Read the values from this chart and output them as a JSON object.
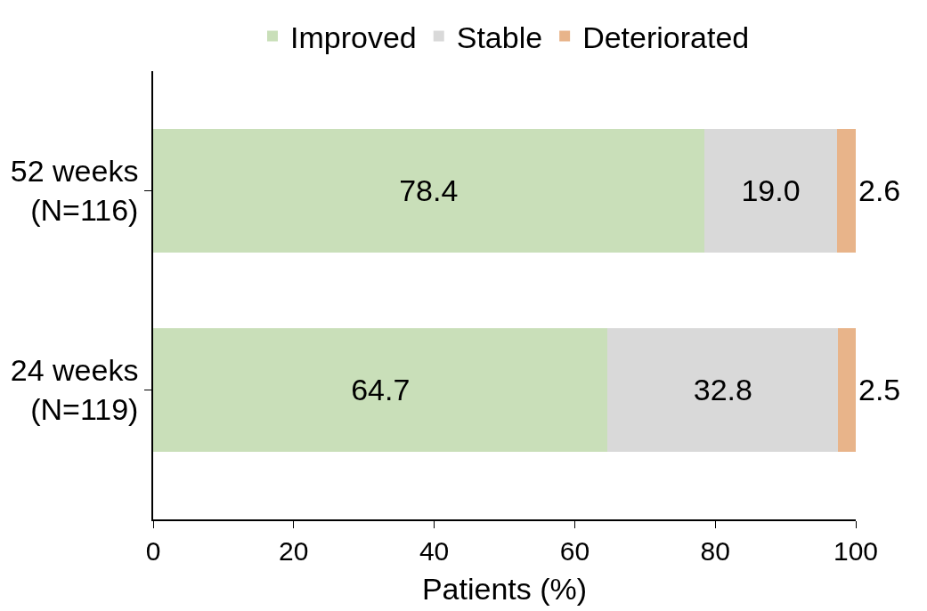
{
  "chart_data": {
    "type": "bar",
    "orientation": "horizontal",
    "stacked": true,
    "xlabel": "Patients (%)",
    "categories": [
      "52 weeks\n(N=116)",
      "24 weeks\n(N=119)"
    ],
    "series": [
      {
        "name": "Improved",
        "color": "#c9dfb9",
        "values": [
          78.4,
          64.7
        ]
      },
      {
        "name": "Stable",
        "color": "#d9d9d9",
        "values": [
          19.0,
          32.8
        ],
        "value_labels": [
          "19.0",
          "32.8"
        ]
      },
      {
        "name": "Deteriorated",
        "color": "#e8b48a",
        "values": [
          2.6,
          2.5
        ]
      }
    ],
    "xlim": [
      0,
      100
    ],
    "xticks": [
      0,
      20,
      40,
      60,
      80,
      100
    ],
    "legend": "top",
    "data_labels": true
  }
}
